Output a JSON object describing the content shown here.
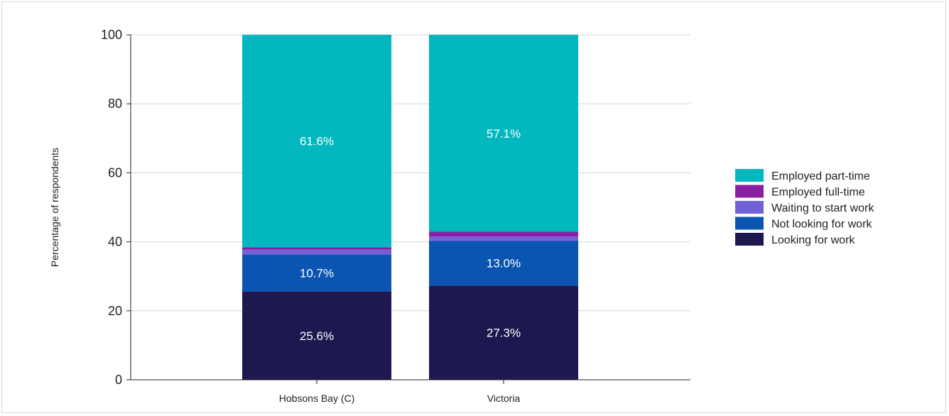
{
  "chart_data": {
    "type": "bar",
    "stacked": true,
    "categories": [
      "Hobsons Bay (C)",
      "Victoria"
    ],
    "series": [
      {
        "name": "Looking for work",
        "values": [
          25.6,
          27.3
        ],
        "color": "#1e1850",
        "labels": [
          "25.6%",
          "27.3%"
        ]
      },
      {
        "name": "Not looking for work",
        "values": [
          10.7,
          13.0
        ],
        "color": "#0a55b2",
        "labels": [
          "10.7%",
          "13.0%"
        ]
      },
      {
        "name": "Waiting to start work",
        "values": [
          1.4,
          1.2
        ],
        "color": "#7162d8",
        "labels": [
          "",
          ""
        ]
      },
      {
        "name": "Employed full-time",
        "values": [
          0.7,
          1.4
        ],
        "color": "#8a1fa3",
        "labels": [
          "",
          ""
        ]
      },
      {
        "name": "Employed part-time",
        "values": [
          61.6,
          57.1
        ],
        "color": "#00b8bd",
        "labels": [
          "61.6%",
          "57.1%"
        ]
      }
    ],
    "legend_order": [
      "Employed part-time",
      "Employed full-time",
      "Waiting to start work",
      "Not looking for work",
      "Looking for work"
    ],
    "title": "",
    "xlabel": "",
    "ylabel": "Percentage of respondents",
    "ylim": [
      0,
      100
    ],
    "yticks": [
      0,
      20,
      40,
      60,
      80,
      100
    ],
    "grid": true,
    "legend_position": "right"
  }
}
